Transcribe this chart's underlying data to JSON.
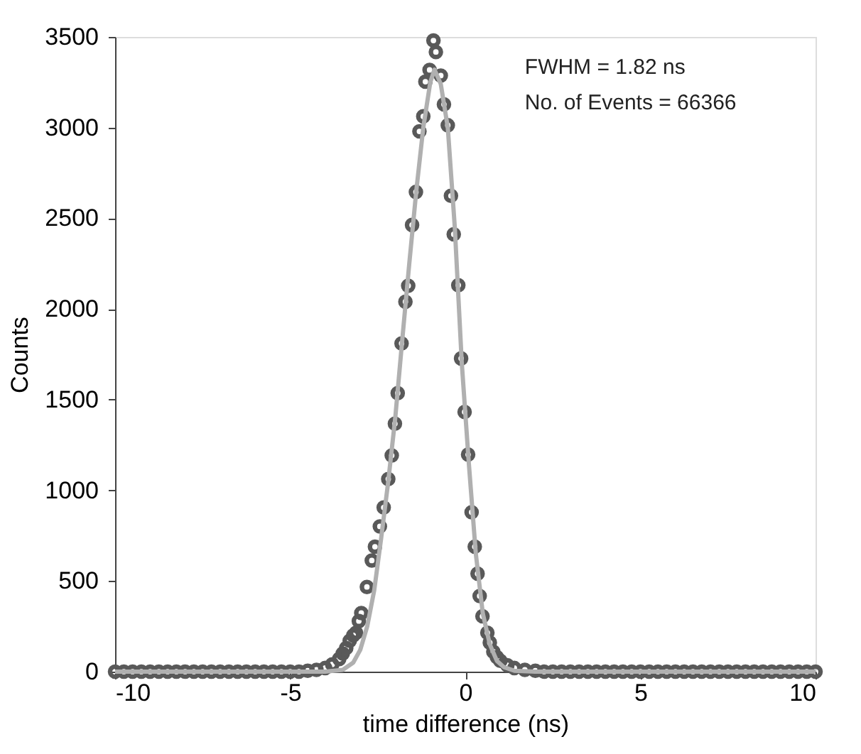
{
  "chart_data": {
    "type": "scatter",
    "xlabel": "time difference (ns)",
    "ylabel": "Counts",
    "xlim": [
      -10,
      10
    ],
    "xticks": [
      -10,
      -5,
      0,
      5,
      10
    ],
    "ylim": [
      0,
      3500
    ],
    "yticks": [
      0,
      500,
      {
        "value": 1000,
        "label": "1000"
      },
      {
        "value": 1500,
        "label": "1500"
      },
      {
        "value": 2000,
        "label": "2000"
      },
      {
        "value": 2500,
        "label": "2500"
      },
      {
        "value": 3000,
        "label": "3000"
      },
      {
        "value": 3500,
        "label": "3500"
      }
    ],
    "grid": false,
    "marker": "circle",
    "annotations": [
      "FWHM = 1.82 ns",
      "No. of Events = 66366"
    ],
    "series": [
      {
        "color": "#595959",
        "x": [
          -10,
          -9.75,
          -9.5,
          -9.25,
          -9,
          -8.75,
          -8.5,
          -8.25,
          -8,
          -7.75,
          -7.5,
          -7.25,
          -7,
          -6.75,
          -6.5,
          -6.25,
          -6,
          -5.75,
          -5.5,
          -5.25,
          -5,
          -4.75,
          -4.5,
          -4.25,
          -4.0,
          -3.8,
          -3.6,
          -3.5,
          -3.4,
          -3.3,
          -3.2,
          -3.12,
          -3.04,
          -2.97,
          -2.81,
          -2.67,
          -2.58,
          -2.44,
          -2.33,
          -2.2,
          -2.1,
          -2.01,
          -1.93,
          -1.82,
          -1.71,
          -1.63,
          -1.52,
          -1.41,
          -1.31,
          -1.2,
          -1.14,
          -1.02,
          -0.91,
          -0.84,
          -0.7,
          -0.61,
          -0.5,
          -0.41,
          -0.33,
          -0.2,
          -0.12,
          -0.02,
          0.08,
          0.18,
          0.27,
          0.35,
          0.41,
          0.49,
          0.63,
          0.7,
          0.8,
          0.9,
          1.0,
          1.2,
          1.4,
          1.7,
          2.0,
          2.25,
          2.5,
          2.75,
          3,
          3.25,
          3.5,
          3.75,
          4,
          4.25,
          4.5,
          4.75,
          5,
          5.25,
          5.5,
          5.75,
          6,
          6.25,
          6.5,
          6.75,
          7,
          7.25,
          7.5,
          7.75,
          8,
          8.25,
          8.5,
          8.75,
          9,
          9.25,
          9.5,
          9.75,
          10
        ],
        "values": [
          0,
          0,
          0,
          0,
          0,
          0,
          0,
          0,
          0,
          0,
          0,
          0,
          0,
          0,
          0,
          0,
          0,
          0,
          0,
          0,
          0,
          0,
          5,
          10,
          20,
          40,
          70,
          100,
          130,
          170,
          200,
          214,
          279,
          323,
          467,
          613,
          689,
          801,
          905,
          1062,
          1192,
          1367,
          1536,
          1810,
          2040,
          2128,
          2463,
          2645,
          2979,
          3062,
          3253,
          3318,
          3480,
          3417,
          3287,
          3128,
          3013,
          2624,
          2412,
          2131,
          1727,
          1432,
          1197,
          879,
          689,
          540,
          417,
          305,
          214,
          160,
          110,
          80,
          60,
          35,
          20,
          10,
          5,
          0,
          0,
          0,
          0,
          0,
          0,
          0,
          0,
          0,
          0,
          0,
          0,
          0,
          0,
          0,
          0,
          0,
          0,
          0,
          0,
          0,
          0,
          0,
          0,
          0,
          0,
          0,
          0,
          0,
          0,
          0,
          0
        ]
      },
      {
        "type": "line",
        "marker": "none",
        "line_style": "solid",
        "color": "#b0b0b0",
        "x": [
          -10,
          -4,
          -3.5,
          -3.2,
          -3.0,
          -2.8,
          -2.6,
          -2.4,
          -2.2,
          -2.0,
          -1.8,
          -1.6,
          -1.4,
          -1.2,
          -1.0,
          -0.88,
          -0.7,
          -0.5,
          -0.3,
          -0.1,
          0.1,
          0.3,
          0.5,
          0.7,
          0.9,
          1.1,
          1.4,
          2.0,
          10
        ],
        "values": [
          0,
          0,
          10,
          50,
          120,
          250,
          450,
          740,
          1050,
          1400,
          1830,
          2250,
          2650,
          3000,
          3250,
          3320,
          3240,
          3000,
          2450,
          1700,
          1150,
          650,
          320,
          150,
          60,
          25,
          5,
          0,
          0
        ]
      }
    ]
  }
}
